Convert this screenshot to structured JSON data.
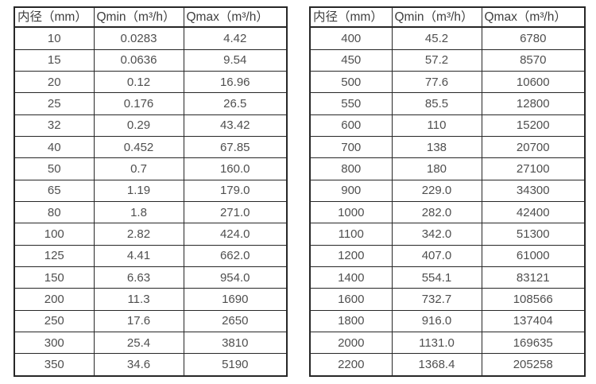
{
  "colors": {
    "background": "#ffffff",
    "table_border": "#272727",
    "header_text": "#3e3e3e",
    "cell_text": "#4f4f4f"
  },
  "chart_data": [
    {
      "type": "table",
      "columns": [
        "内径（mm）",
        "Qmin（m³/h）",
        "Qmax（m³/h）"
      ],
      "rows": [
        [
          "10",
          "0.0283",
          "4.42"
        ],
        [
          "15",
          "0.0636",
          "9.54"
        ],
        [
          "20",
          "0.12",
          "16.96"
        ],
        [
          "25",
          "0.176",
          "26.5"
        ],
        [
          "32",
          "0.29",
          "43.42"
        ],
        [
          "40",
          "0.452",
          "67.85"
        ],
        [
          "50",
          "0.7",
          "160.0"
        ],
        [
          "65",
          "1.19",
          "179.0"
        ],
        [
          "80",
          "1.8",
          "271.0"
        ],
        [
          "100",
          "2.82",
          "424.0"
        ],
        [
          "125",
          "4.41",
          "662.0"
        ],
        [
          "150",
          "6.63",
          "954.0"
        ],
        [
          "200",
          "11.3",
          "1690"
        ],
        [
          "250",
          "17.6",
          "2650"
        ],
        [
          "300",
          "25.4",
          "3810"
        ],
        [
          "350",
          "34.6",
          "5190"
        ]
      ]
    },
    {
      "type": "table",
      "columns": [
        "内径（mm）",
        "Qmin（m³/h）",
        "Qmax（m³/h）"
      ],
      "rows": [
        [
          "400",
          "45.2",
          "6780"
        ],
        [
          "450",
          "57.2",
          "8570"
        ],
        [
          "500",
          "77.6",
          "10600"
        ],
        [
          "550",
          "85.5",
          "12800"
        ],
        [
          "600",
          "110",
          "15200"
        ],
        [
          "700",
          "138",
          "20700"
        ],
        [
          "800",
          "180",
          "27100"
        ],
        [
          "900",
          "229.0",
          "34300"
        ],
        [
          "1000",
          "282.0",
          "42400"
        ],
        [
          "1100",
          "342.0",
          "51300"
        ],
        [
          "1200",
          "407.0",
          "61000"
        ],
        [
          "1400",
          "554.1",
          "83121"
        ],
        [
          "1600",
          "732.7",
          "108566"
        ],
        [
          "1800",
          "916.0",
          "137404"
        ],
        [
          "2000",
          "1131.0",
          "169635"
        ],
        [
          "2200",
          "1368.4",
          "205258"
        ]
      ]
    }
  ]
}
